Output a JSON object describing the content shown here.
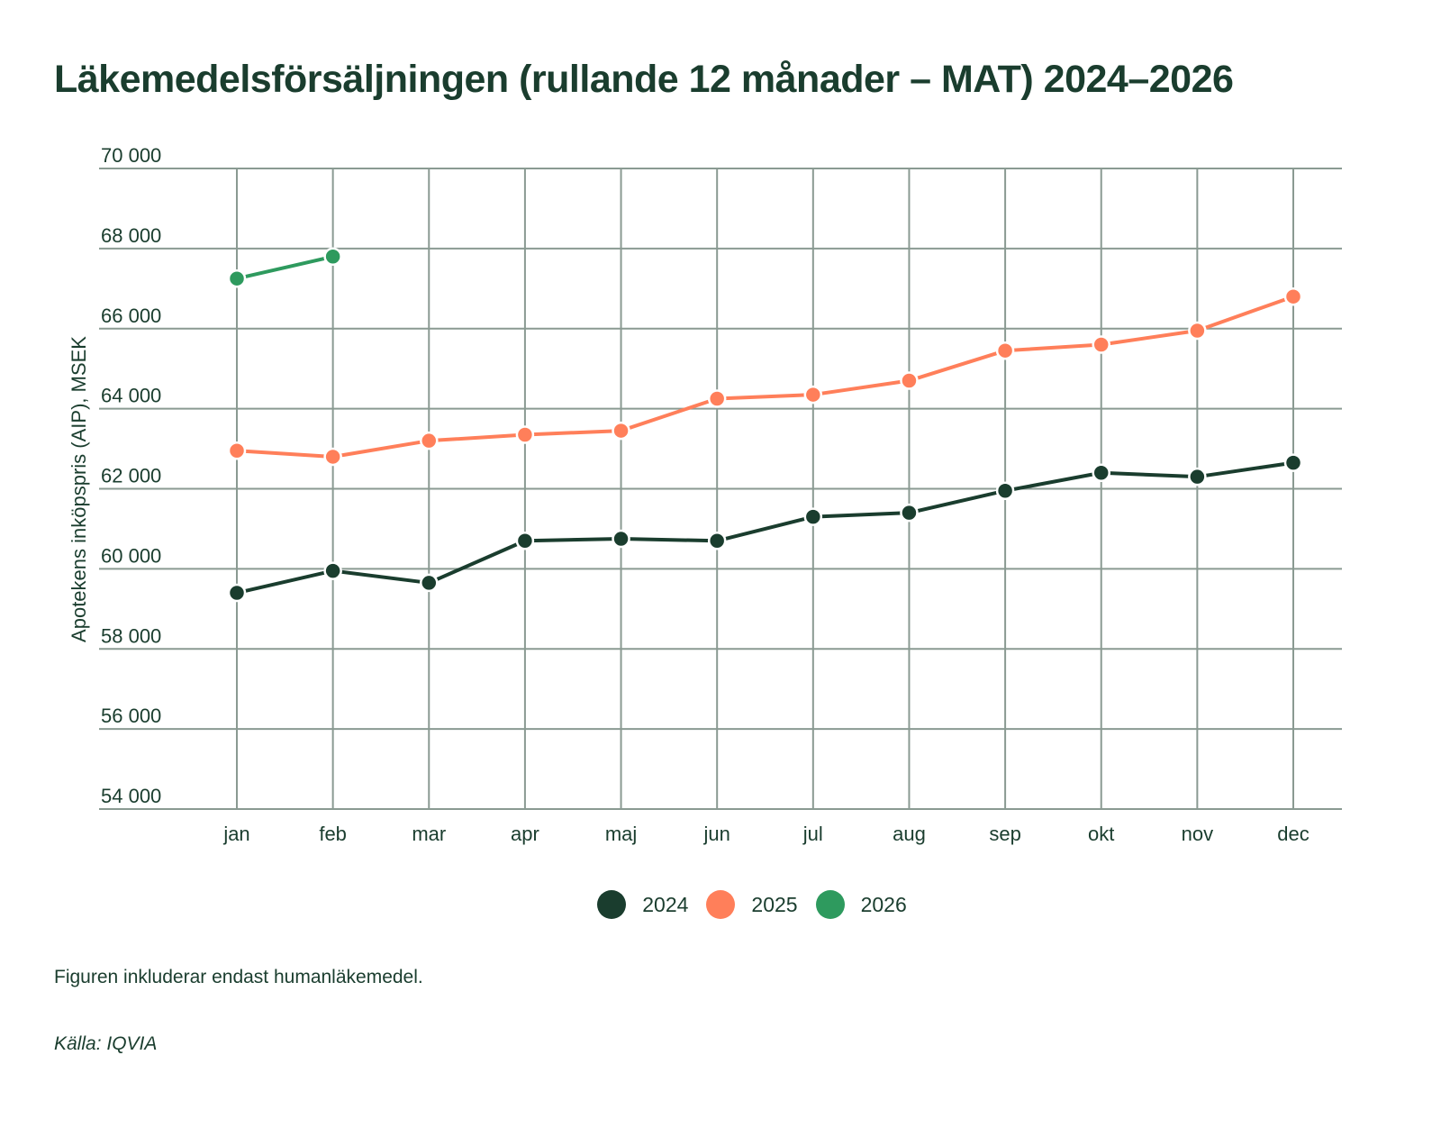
{
  "chart_data": {
    "type": "line",
    "title": "Läkemedelsförsäljningen (rullande 12 månader – MAT) 2024–2026",
    "xlabel": "",
    "ylabel": "Apotekens inköpspris (AIP), MSEK",
    "categories": [
      "jan",
      "feb",
      "mar",
      "apr",
      "maj",
      "jun",
      "jul",
      "aug",
      "sep",
      "okt",
      "nov",
      "dec"
    ],
    "ylim": [
      54000,
      70000
    ],
    "yticks": [
      54000,
      56000,
      58000,
      60000,
      62000,
      64000,
      66000,
      68000,
      70000
    ],
    "ytick_labels": [
      "54 000",
      "56 000",
      "58 000",
      "60 000",
      "62 000",
      "64 000",
      "66 000",
      "68 000",
      "70 000"
    ],
    "grid": true,
    "legend_position": "bottom-center",
    "series": [
      {
        "name": "2024",
        "color": "#1a3d2e",
        "values": [
          59400,
          59950,
          59650,
          60700,
          60750,
          60700,
          61300,
          61400,
          61950,
          62400,
          62300,
          62650
        ]
      },
      {
        "name": "2025",
        "color": "#ff7f5a",
        "values": [
          62950,
          62800,
          63200,
          63350,
          63450,
          64250,
          64350,
          64700,
          65450,
          65600,
          65950,
          66800
        ]
      },
      {
        "name": "2026",
        "color": "#2e9a5e",
        "values": [
          67250,
          67800,
          null,
          null,
          null,
          null,
          null,
          null,
          null,
          null,
          null,
          null
        ]
      }
    ]
  },
  "legend": [
    {
      "label": "2024",
      "color": "#1a3d2e"
    },
    {
      "label": "2025",
      "color": "#ff7f5a"
    },
    {
      "label": "2026",
      "color": "#2e9a5e"
    }
  ],
  "footer": {
    "note": "Figuren inkluderar endast humanläkemedel.",
    "source": "Källa: IQVIA"
  },
  "colors": {
    "text": "#1a3d2e",
    "grid": "#8a9a92"
  }
}
